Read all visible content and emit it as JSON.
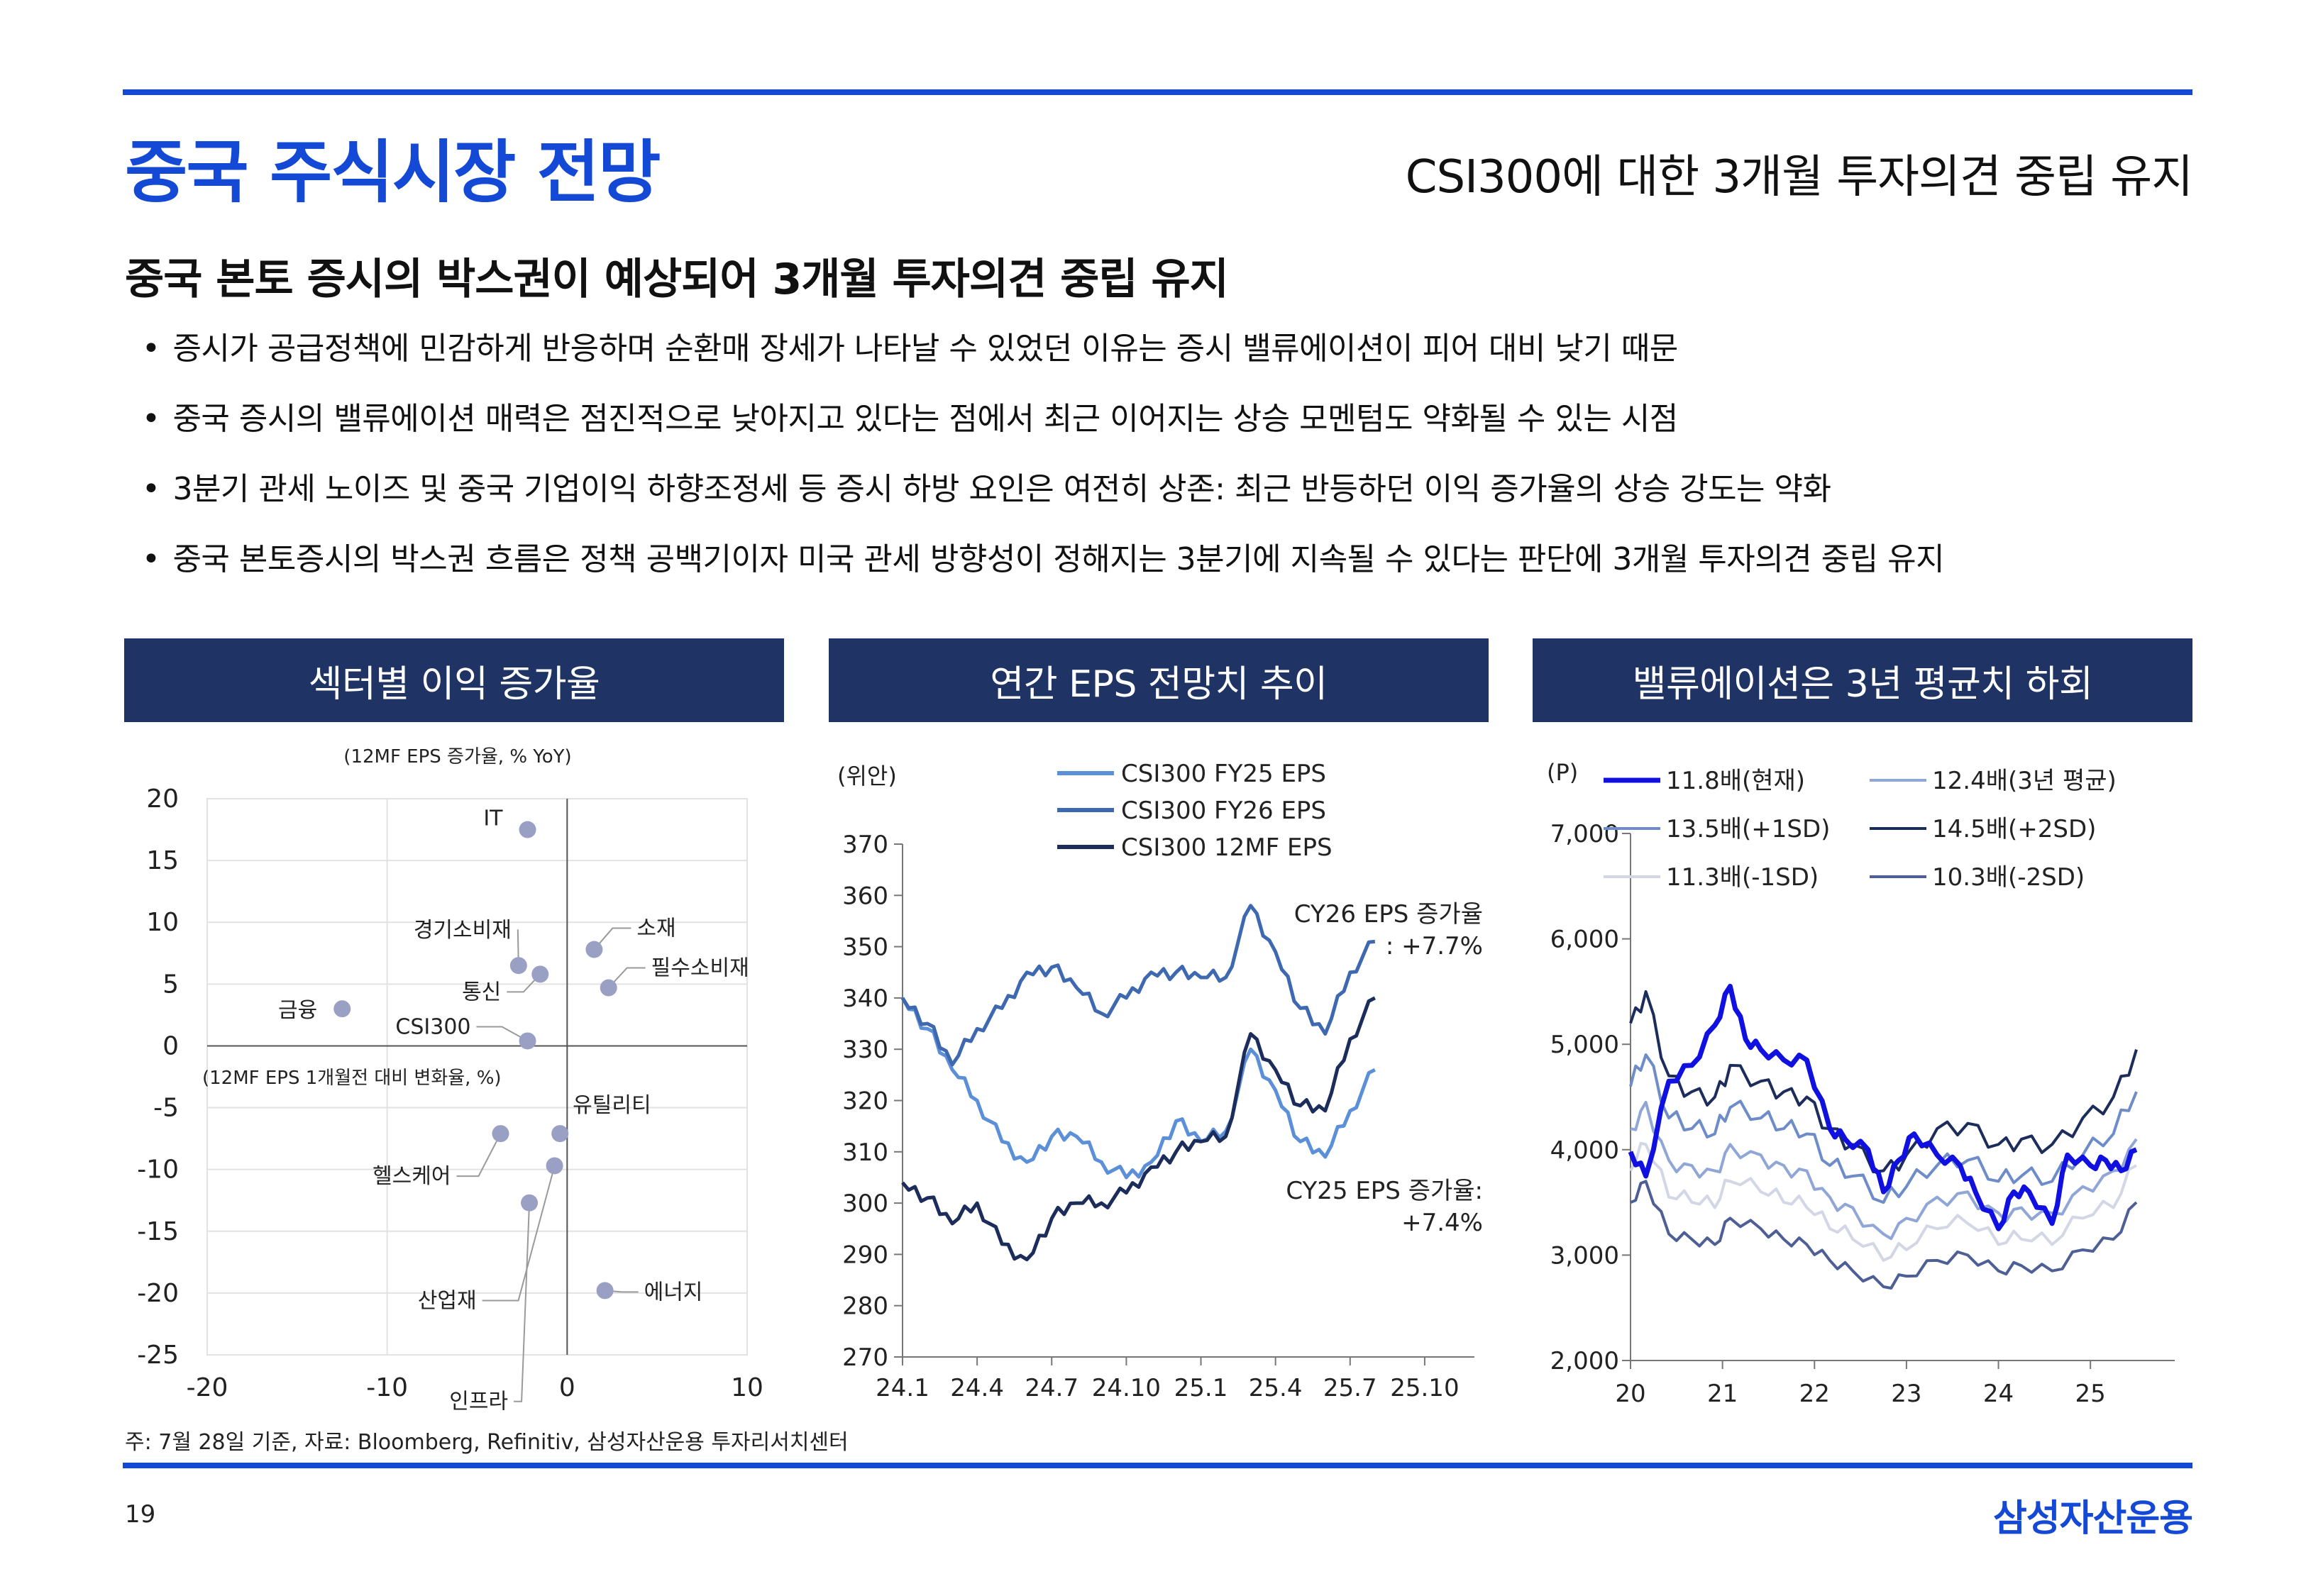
{
  "header": {
    "title": "중국 주식시장 전망",
    "right_title": "CSI300에 대한 3개월 투자의견 중립 유지",
    "subtitle": "중국 본토 증시의 박스권이 예상되어 3개월 투자의견 중립 유지"
  },
  "bullets": [
    "증시가 공급정책에 민감하게 반응하며 순환매 장세가 나타날 수 있었던 이유는 증시 밸류에이션이 피어 대비 낮기 때문",
    "중국 증시의 밸류에이션 매력은 점진적으로 낮아지고 있다는 점에서 최근 이어지는 상승 모멘텀도 약화될 수 있는 시점",
    "3분기 관세 노이즈 및  중국 기업이익 하향조정세 등 증시 하방 요인은 여전히 상존: 최근 반등하던 이익 증가율의 상승 강도는 약화",
    "중국 본토증시의 박스권 흐름은 정책 공백기이자 미국 관세 방향성이 정해지는 3분기에 지속될 수 있다는 판단에 3개월 투자의견 중립 유지"
  ],
  "panels": [
    "섹터별 이익 증가율",
    "연간 EPS 전망치 추이",
    "밸류에이션은 3년 평균치 하회"
  ],
  "footnote": "주: 7월 28일 기준, 자료: Bloomberg, Refinitiv, 삼성자산운용 투자리서치센터",
  "page_number": "19",
  "logo": "삼성자산운용",
  "colors": {
    "brand_blue": "#1449d6",
    "panel_navy": "#1f3465",
    "dot": "#9aa0c4"
  },
  "chart_data": [
    {
      "type": "scatter",
      "title": "섹터별 이익 증가율",
      "xlabel": "(12MF EPS 1개월전 대비 변화율, %)",
      "ylabel": "(12MF EPS 증가율, % YoY)",
      "xlim": [
        -20,
        10
      ],
      "ylim": [
        -25,
        20
      ],
      "xticks": [
        "-20",
        "-10",
        "0",
        "10"
      ],
      "yticks": [
        "20",
        "15",
        "10",
        "5",
        "0",
        "-5",
        "-10",
        "-15",
        "-20",
        "-25"
      ],
      "grid": true,
      "points": [
        {
          "label": "IT",
          "x": -2.2,
          "y": 17.5
        },
        {
          "label": "소재",
          "x": 1.5,
          "y": 7.8
        },
        {
          "label": "경기소비재",
          "x": -2.7,
          "y": 6.5
        },
        {
          "label": "통신",
          "x": -1.5,
          "y": 5.8
        },
        {
          "label": "필수소비재",
          "x": 2.3,
          "y": 4.7
        },
        {
          "label": "금융",
          "x": -12.5,
          "y": 3.0
        },
        {
          "label": "CSI300",
          "x": -2.2,
          "y": 0.4
        },
        {
          "label": "유틸리티",
          "x": -0.4,
          "y": -7.1
        },
        {
          "label": "헬스케어",
          "x": -3.7,
          "y": -7.1
        },
        {
          "label": "산업재",
          "x": -0.7,
          "y": -9.7
        },
        {
          "label": "인프라",
          "x": -2.1,
          "y": -12.7
        },
        {
          "label": "에너지",
          "x": 2.1,
          "y": -19.8
        }
      ]
    },
    {
      "type": "line",
      "title": "연간 EPS 전망치 추이",
      "ylabel": "(위안)",
      "ylim": [
        270,
        370
      ],
      "yticks": [
        "370",
        "360",
        "350",
        "340",
        "330",
        "320",
        "310",
        "300",
        "290",
        "280",
        "270"
      ],
      "xticks": [
        "24.1",
        "24.4",
        "24.7",
        "24.10",
        "25.1",
        "25.4",
        "25.7",
        "25.10"
      ],
      "x_range": [
        "2024-01-01",
        "2025-12-01"
      ],
      "annotations": [
        "CY26 EPS 증가율\n: +7.7%",
        "CY25 EPS 증가율:\n+7.4%"
      ],
      "series": [
        {
          "name": "CSI300 FY25 EPS",
          "color": "#5b8fd8",
          "x": [
            "2024-01",
            "2024-02",
            "2024-03",
            "2024-04",
            "2024-05",
            "2024-06",
            "2024-07",
            "2024-08",
            "2024-09",
            "2024-10",
            "2024-11",
            "2024-12",
            "2025-01",
            "2025-02",
            "2025-03",
            "2025-04",
            "2025-05",
            "2025-06",
            "2025-07",
            "2025-08"
          ],
          "values": [
            340,
            334,
            326,
            320,
            312,
            308,
            313,
            313,
            308,
            305,
            308,
            316,
            312,
            314,
            330,
            322,
            312,
            309,
            318,
            326
          ]
        },
        {
          "name": "CSI300 FY26 EPS",
          "color": "#3e68b0",
          "x": [
            "2024-01",
            "2024-02",
            "2024-03",
            "2024-04",
            "2024-05",
            "2024-06",
            "2024-07",
            "2024-08",
            "2024-09",
            "2024-10",
            "2024-11",
            "2024-12",
            "2025-01",
            "2025-02",
            "2025-03",
            "2025-04",
            "2025-05",
            "2025-06",
            "2025-07",
            "2025-08"
          ],
          "values": [
            340,
            335,
            327,
            334,
            338,
            345,
            346,
            342,
            337,
            340,
            345,
            345,
            344,
            344,
            358,
            349,
            338,
            333,
            345,
            351
          ]
        },
        {
          "name": "CSI300 12MF EPS",
          "color": "#1c2d5c",
          "x": [
            "2024-01",
            "2024-02",
            "2024-03",
            "2024-04",
            "2024-05",
            "2024-06",
            "2024-07",
            "2024-08",
            "2024-09",
            "2024-10",
            "2024-11",
            "2024-12",
            "2025-01",
            "2025-02",
            "2025-03",
            "2025-04",
            "2025-05",
            "2025-06",
            "2025-07",
            "2025-08"
          ],
          "values": [
            304,
            301,
            296,
            300,
            292,
            289,
            297,
            300,
            300,
            302,
            307,
            310,
            312,
            313,
            333,
            326,
            319,
            318,
            332,
            340
          ]
        }
      ]
    },
    {
      "type": "line",
      "title": "밸류에이션은 3년 평균치 하회",
      "ylabel": "(P)",
      "ylim": [
        2000,
        7000
      ],
      "yticks": [
        "7,000",
        "6,000",
        "5,000",
        "4,000",
        "3,000",
        "2,000"
      ],
      "xticks": [
        "20",
        "21",
        "22",
        "23",
        "24",
        "25"
      ],
      "x_range": [
        "2020-01-01",
        "2025-12-31"
      ],
      "series": [
        {
          "name": "11.8배(현재)",
          "color": "#1010e0",
          "width": 7,
          "x": [
            "2020-01",
            "2020-03",
            "2020-06",
            "2020-09",
            "2020-12",
            "2021-02",
            "2021-04",
            "2021-06",
            "2021-09",
            "2021-12",
            "2022-03",
            "2022-05",
            "2022-08",
            "2022-10",
            "2022-12",
            "2023-02",
            "2023-05",
            "2023-08",
            "2023-10",
            "2024-01",
            "2024-03",
            "2024-05",
            "2024-08",
            "2024-10",
            "2025-01",
            "2025-03",
            "2025-05",
            "2025-07"
          ],
          "values": [
            3980,
            3750,
            4650,
            4800,
            5180,
            5550,
            5050,
            4950,
            4850,
            4850,
            4200,
            4100,
            4000,
            3600,
            3900,
            4150,
            3950,
            3850,
            3600,
            3250,
            3600,
            3600,
            3300,
            3950,
            3850,
            3900,
            3800,
            4000
          ]
        },
        {
          "name": "12.4배(3년 평균)",
          "color": "#8fa6d6",
          "x": [
            "2020-01",
            "2020-03",
            "2020-06",
            "2020-09",
            "2020-12",
            "2021-02",
            "2021-06",
            "2021-09",
            "2021-12",
            "2022-03",
            "2022-06",
            "2022-10",
            "2023-01",
            "2023-05",
            "2023-09",
            "2024-01",
            "2024-04",
            "2024-08",
            "2024-12",
            "2025-04",
            "2025-07"
          ],
          "values": [
            4200,
            4450,
            3900,
            3850,
            3800,
            4050,
            3950,
            3850,
            3800,
            3550,
            3450,
            3200,
            3350,
            3550,
            3600,
            3400,
            3450,
            3400,
            3650,
            3800,
            4100
          ]
        },
        {
          "name": "13.5배(+1SD)",
          "color": "#6d8cc8",
          "x": [
            "2020-01",
            "2020-03",
            "2020-06",
            "2020-09",
            "2020-12",
            "2021-02",
            "2021-06",
            "2021-09",
            "2021-12",
            "2022-03",
            "2022-06",
            "2022-10",
            "2023-01",
            "2023-05",
            "2023-09",
            "2024-01",
            "2024-04",
            "2024-08",
            "2024-12",
            "2025-04",
            "2025-07"
          ],
          "values": [
            4600,
            4900,
            4300,
            4200,
            4150,
            4400,
            4300,
            4200,
            4150,
            3850,
            3750,
            3500,
            3650,
            3850,
            3900,
            3700,
            3750,
            3700,
            3950,
            4150,
            4550
          ]
        },
        {
          "name": "14.5배(+2SD)",
          "color": "#1c2d5c",
          "x": [
            "2020-01",
            "2020-03",
            "2020-06",
            "2020-09",
            "2020-12",
            "2021-02",
            "2021-06",
            "2021-09",
            "2021-12",
            "2022-03",
            "2022-06",
            "2022-10",
            "2023-01",
            "2023-05",
            "2023-09",
            "2024-01",
            "2024-04",
            "2024-08",
            "2024-12",
            "2025-04",
            "2025-07"
          ],
          "values": [
            5200,
            5500,
            4700,
            4550,
            4500,
            4800,
            4650,
            4550,
            4500,
            4200,
            4050,
            3800,
            3950,
            4200,
            4250,
            4050,
            4100,
            4050,
            4300,
            4500,
            4950
          ]
        },
        {
          "name": "11.3배(-1SD)",
          "color": "#d3d7e5",
          "x": [
            "2020-01",
            "2020-03",
            "2020-06",
            "2020-09",
            "2020-12",
            "2021-02",
            "2021-06",
            "2021-09",
            "2021-12",
            "2022-03",
            "2022-06",
            "2022-10",
            "2023-01",
            "2023-05",
            "2023-09",
            "2024-01",
            "2024-04",
            "2024-08",
            "2024-12",
            "2025-04",
            "2025-07"
          ],
          "values": [
            3800,
            4050,
            3550,
            3500,
            3450,
            3700,
            3600,
            3500,
            3450,
            3250,
            3150,
            2950,
            3050,
            3250,
            3300,
            3100,
            3150,
            3100,
            3350,
            3450,
            3850
          ]
        },
        {
          "name": "10.3배(-2SD)",
          "color": "#4e5f96",
          "x": [
            "2020-01",
            "2020-03",
            "2020-06",
            "2020-09",
            "2020-12",
            "2021-02",
            "2021-06",
            "2021-09",
            "2021-12",
            "2022-03",
            "2022-06",
            "2022-10",
            "2023-01",
            "2023-05",
            "2023-09",
            "2024-01",
            "2024-04",
            "2024-08",
            "2024-12",
            "2025-04",
            "2025-07"
          ],
          "values": [
            3500,
            3700,
            3200,
            3150,
            3100,
            3350,
            3250,
            3150,
            3100,
            2950,
            2850,
            2700,
            2800,
            2950,
            3000,
            2850,
            2900,
            2850,
            3050,
            3150,
            3500
          ]
        }
      ]
    }
  ]
}
